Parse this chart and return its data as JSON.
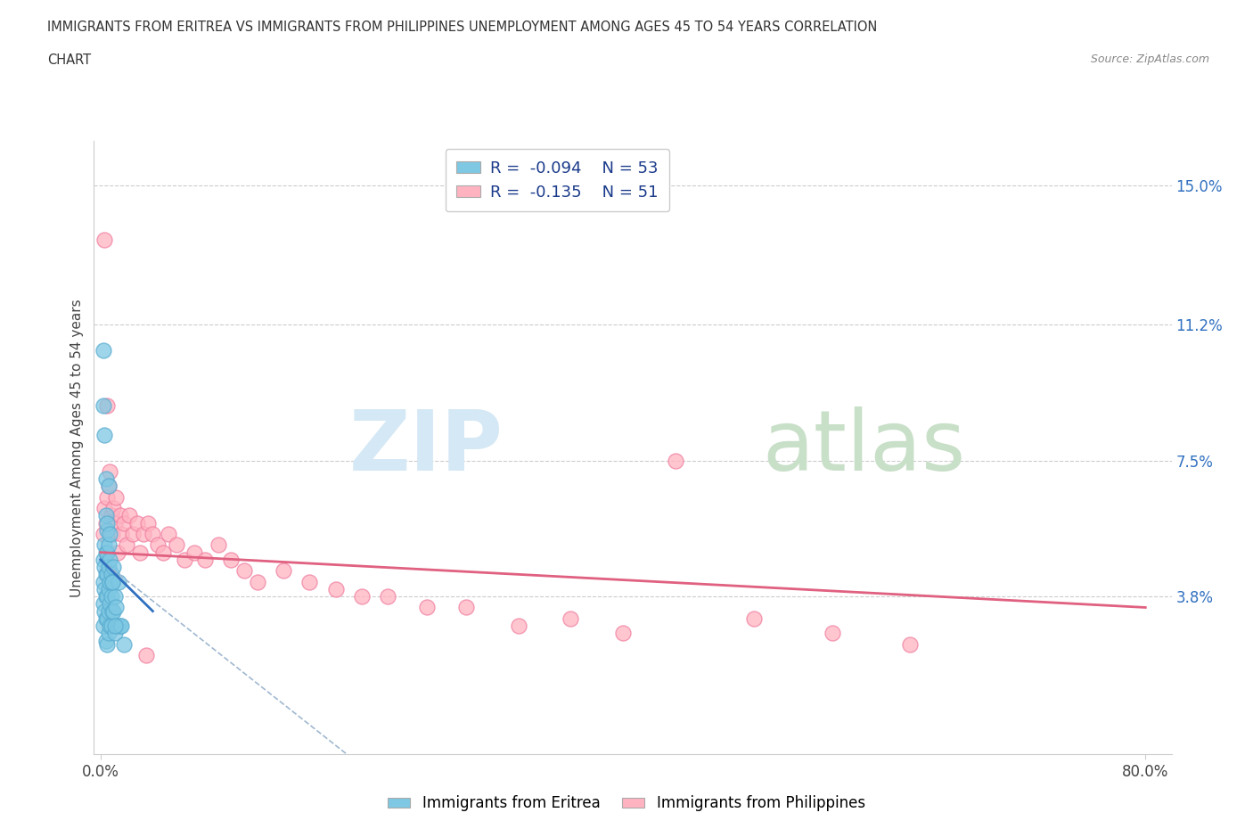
{
  "title_line1": "IMMIGRANTS FROM ERITREA VS IMMIGRANTS FROM PHILIPPINES UNEMPLOYMENT AMONG AGES 45 TO 54 YEARS CORRELATION",
  "title_line2": "CHART",
  "source": "Source: ZipAtlas.com",
  "ylabel": "Unemployment Among Ages 45 to 54 years",
  "xlim": [
    -0.005,
    0.82
  ],
  "ylim": [
    -0.005,
    0.162
  ],
  "ytick_right_labels": [
    "15.0%",
    "11.2%",
    "7.5%",
    "3.8%"
  ],
  "ytick_right_vals": [
    0.15,
    0.112,
    0.075,
    0.038
  ],
  "hline_vals": [
    0.15,
    0.112,
    0.075,
    0.038
  ],
  "eritrea_color": "#7ec8e3",
  "eritrea_edge_color": "#5aacd0",
  "philippines_color": "#ffb3c1",
  "philippines_edge_color": "#f080a0",
  "eritrea_R": -0.094,
  "eritrea_N": 53,
  "philippines_R": -0.135,
  "philippines_N": 51,
  "legend_R_color": "#1a3a8a",
  "eritrea_line_color": "#3070c0",
  "eritrea_dash_color": "#a0b8d0",
  "philippines_line_color": "#e06080",
  "background_color": "#ffffff",
  "grid_color": "#cccccc",
  "eritrea_scatter_x": [
    0.002,
    0.002,
    0.002,
    0.002,
    0.003,
    0.003,
    0.003,
    0.003,
    0.004,
    0.004,
    0.004,
    0.004,
    0.004,
    0.005,
    0.005,
    0.005,
    0.005,
    0.005,
    0.005,
    0.006,
    0.006,
    0.006,
    0.006,
    0.006,
    0.007,
    0.007,
    0.007,
    0.007,
    0.008,
    0.008,
    0.008,
    0.009,
    0.009,
    0.01,
    0.01,
    0.011,
    0.011,
    0.012,
    0.013,
    0.014,
    0.015,
    0.016,
    0.018,
    0.002,
    0.002,
    0.003,
    0.004,
    0.004,
    0.005,
    0.006,
    0.007,
    0.009,
    0.011
  ],
  "eritrea_scatter_y": [
    0.048,
    0.042,
    0.036,
    0.03,
    0.052,
    0.046,
    0.04,
    0.034,
    0.05,
    0.044,
    0.038,
    0.032,
    0.026,
    0.056,
    0.05,
    0.044,
    0.038,
    0.032,
    0.025,
    0.052,
    0.046,
    0.04,
    0.034,
    0.028,
    0.048,
    0.042,
    0.036,
    0.03,
    0.044,
    0.038,
    0.03,
    0.042,
    0.034,
    0.046,
    0.034,
    0.038,
    0.028,
    0.035,
    0.03,
    0.042,
    0.03,
    0.03,
    0.025,
    0.105,
    0.09,
    0.082,
    0.07,
    0.06,
    0.058,
    0.068,
    0.055,
    0.042,
    0.03
  ],
  "philippines_scatter_x": [
    0.002,
    0.003,
    0.004,
    0.005,
    0.006,
    0.007,
    0.008,
    0.009,
    0.01,
    0.011,
    0.012,
    0.013,
    0.015,
    0.016,
    0.018,
    0.02,
    0.022,
    0.025,
    0.028,
    0.03,
    0.033,
    0.036,
    0.04,
    0.044,
    0.048,
    0.052,
    0.058,
    0.064,
    0.072,
    0.08,
    0.09,
    0.1,
    0.11,
    0.12,
    0.14,
    0.16,
    0.18,
    0.2,
    0.22,
    0.25,
    0.28,
    0.32,
    0.36,
    0.4,
    0.44,
    0.5,
    0.56,
    0.62,
    0.003,
    0.005,
    0.035
  ],
  "philippines_scatter_y": [
    0.055,
    0.062,
    0.058,
    0.065,
    0.068,
    0.072,
    0.06,
    0.055,
    0.062,
    0.058,
    0.065,
    0.05,
    0.06,
    0.055,
    0.058,
    0.052,
    0.06,
    0.055,
    0.058,
    0.05,
    0.055,
    0.058,
    0.055,
    0.052,
    0.05,
    0.055,
    0.052,
    0.048,
    0.05,
    0.048,
    0.052,
    0.048,
    0.045,
    0.042,
    0.045,
    0.042,
    0.04,
    0.038,
    0.038,
    0.035,
    0.035,
    0.03,
    0.032,
    0.028,
    0.075,
    0.032,
    0.028,
    0.025,
    0.135,
    0.09,
    0.022
  ]
}
